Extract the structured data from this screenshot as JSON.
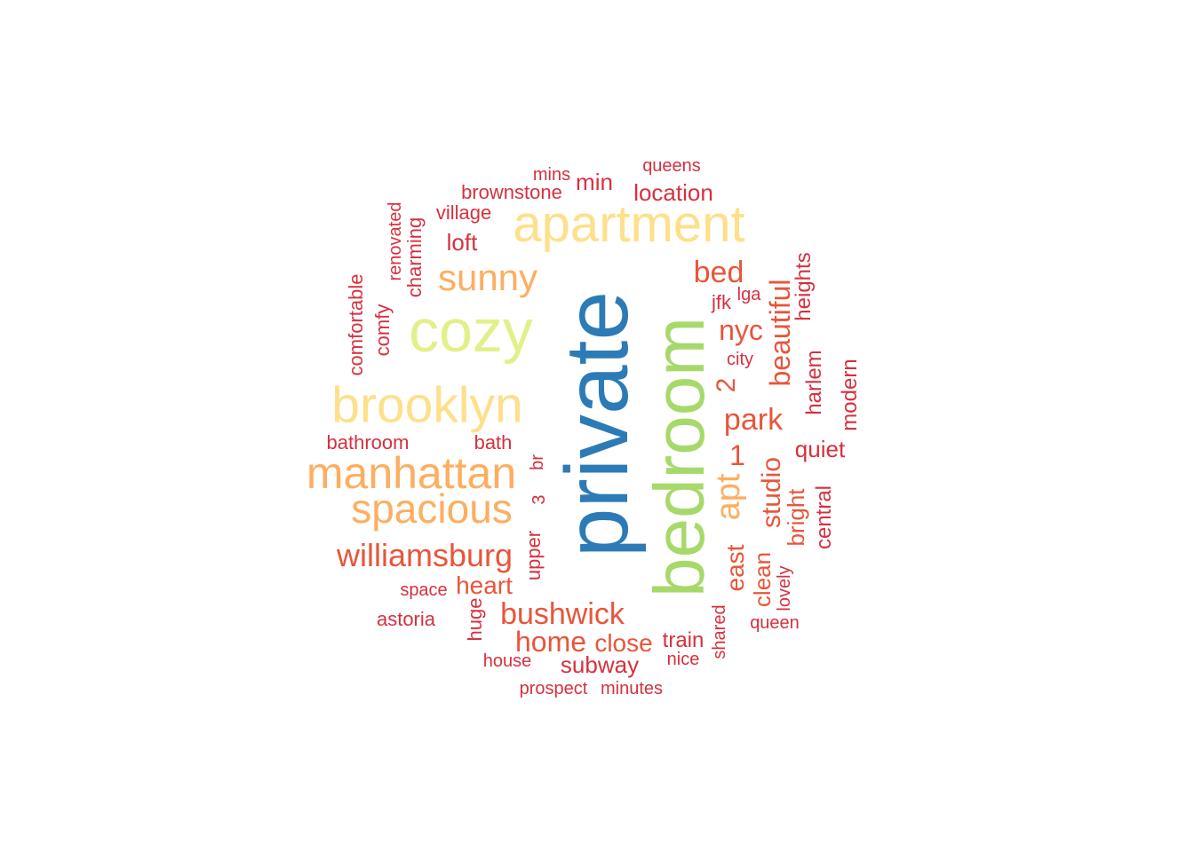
{
  "palette": {
    "blue": "#2C7BB6",
    "green": "#A6D96A",
    "lime": "#E3F08A",
    "yellow": "#FEE08B",
    "orange": "#FDAE61",
    "red_orange": "#E8553B",
    "red": "#D7303E"
  },
  "words": [
    {
      "text": "private",
      "color": "blue"
    },
    {
      "text": "bedroom",
      "color": "green"
    },
    {
      "text": "cozy",
      "color": "lime"
    },
    {
      "text": "apartment",
      "color": "yellow"
    },
    {
      "text": "brooklyn",
      "color": "yellow"
    },
    {
      "text": "manhattan",
      "color": "orange"
    },
    {
      "text": "spacious",
      "color": "orange"
    },
    {
      "text": "sunny",
      "color": "orange"
    },
    {
      "text": "apt",
      "color": "orange"
    },
    {
      "text": "williamsburg",
      "color": "red_orange"
    },
    {
      "text": "bushwick",
      "color": "red_orange"
    },
    {
      "text": "home",
      "color": "red_orange"
    },
    {
      "text": "park",
      "color": "red_orange"
    },
    {
      "text": "bed",
      "color": "red_orange"
    },
    {
      "text": "nyc",
      "color": "red_orange"
    },
    {
      "text": "beautiful",
      "color": "red_orange"
    },
    {
      "text": "studio",
      "color": "red_orange"
    },
    {
      "text": "1",
      "color": "red_orange"
    },
    {
      "text": "2",
      "color": "red_orange"
    },
    {
      "text": "east",
      "color": "red_orange"
    },
    {
      "text": "heart",
      "color": "red_orange"
    },
    {
      "text": "close",
      "color": "red_orange"
    },
    {
      "text": "clean",
      "color": "red_orange"
    },
    {
      "text": "bright",
      "color": "red_orange"
    },
    {
      "text": "location",
      "color": "red"
    },
    {
      "text": "min",
      "color": "red"
    },
    {
      "text": "loft",
      "color": "red"
    },
    {
      "text": "quiet",
      "color": "red"
    },
    {
      "text": "harlem",
      "color": "red"
    },
    {
      "text": "modern",
      "color": "red"
    },
    {
      "text": "heights",
      "color": "red"
    },
    {
      "text": "central",
      "color": "red"
    },
    {
      "text": "subway",
      "color": "red"
    },
    {
      "text": "train",
      "color": "red"
    },
    {
      "text": "comfy",
      "color": "red"
    },
    {
      "text": "charming",
      "color": "red"
    },
    {
      "text": "comfortable",
      "color": "red"
    },
    {
      "text": "brownstone",
      "color": "red"
    },
    {
      "text": "village",
      "color": "red"
    },
    {
      "text": "renovated",
      "color": "red"
    },
    {
      "text": "bathroom",
      "color": "red"
    },
    {
      "text": "bath",
      "color": "red"
    },
    {
      "text": "upper",
      "color": "red"
    },
    {
      "text": "huge",
      "color": "red"
    },
    {
      "text": "astoria",
      "color": "red"
    },
    {
      "text": "space",
      "color": "red"
    },
    {
      "text": "house",
      "color": "red"
    },
    {
      "text": "prospect",
      "color": "red"
    },
    {
      "text": "minutes",
      "color": "red"
    },
    {
      "text": "nice",
      "color": "red"
    },
    {
      "text": "shared",
      "color": "red"
    },
    {
      "text": "lovely",
      "color": "red"
    },
    {
      "text": "queen",
      "color": "red"
    },
    {
      "text": "city",
      "color": "red"
    },
    {
      "text": "jfk",
      "color": "red"
    },
    {
      "text": "lga",
      "color": "red"
    },
    {
      "text": "queens",
      "color": "red"
    },
    {
      "text": "mins",
      "color": "red"
    },
    {
      "text": "br",
      "color": "red"
    },
    {
      "text": "3",
      "color": "red"
    }
  ]
}
